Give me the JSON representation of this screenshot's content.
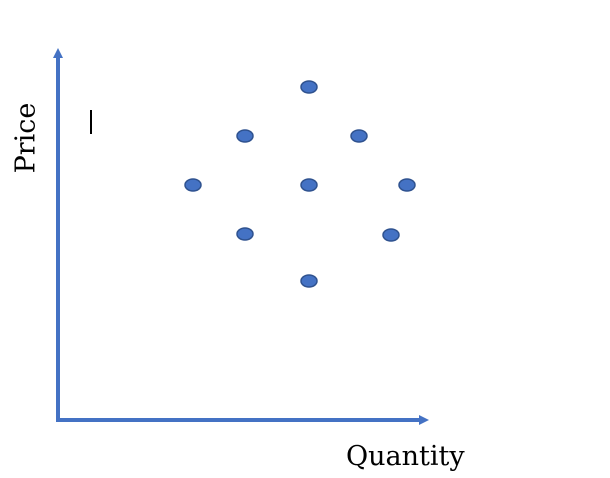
{
  "diagram": {
    "x_axis_label": "Quantity",
    "y_axis_label": "Price",
    "colors": {
      "axis": "#4472C4",
      "point_fill": "#4472C4",
      "point_stroke": "#2F528F",
      "text": "#000000"
    },
    "points": [
      {
        "id": "top"
      },
      {
        "id": "upper-left"
      },
      {
        "id": "upper-right"
      },
      {
        "id": "mid-left"
      },
      {
        "id": "center"
      },
      {
        "id": "mid-right"
      },
      {
        "id": "lower-left"
      },
      {
        "id": "lower-right"
      },
      {
        "id": "bottom"
      }
    ]
  }
}
